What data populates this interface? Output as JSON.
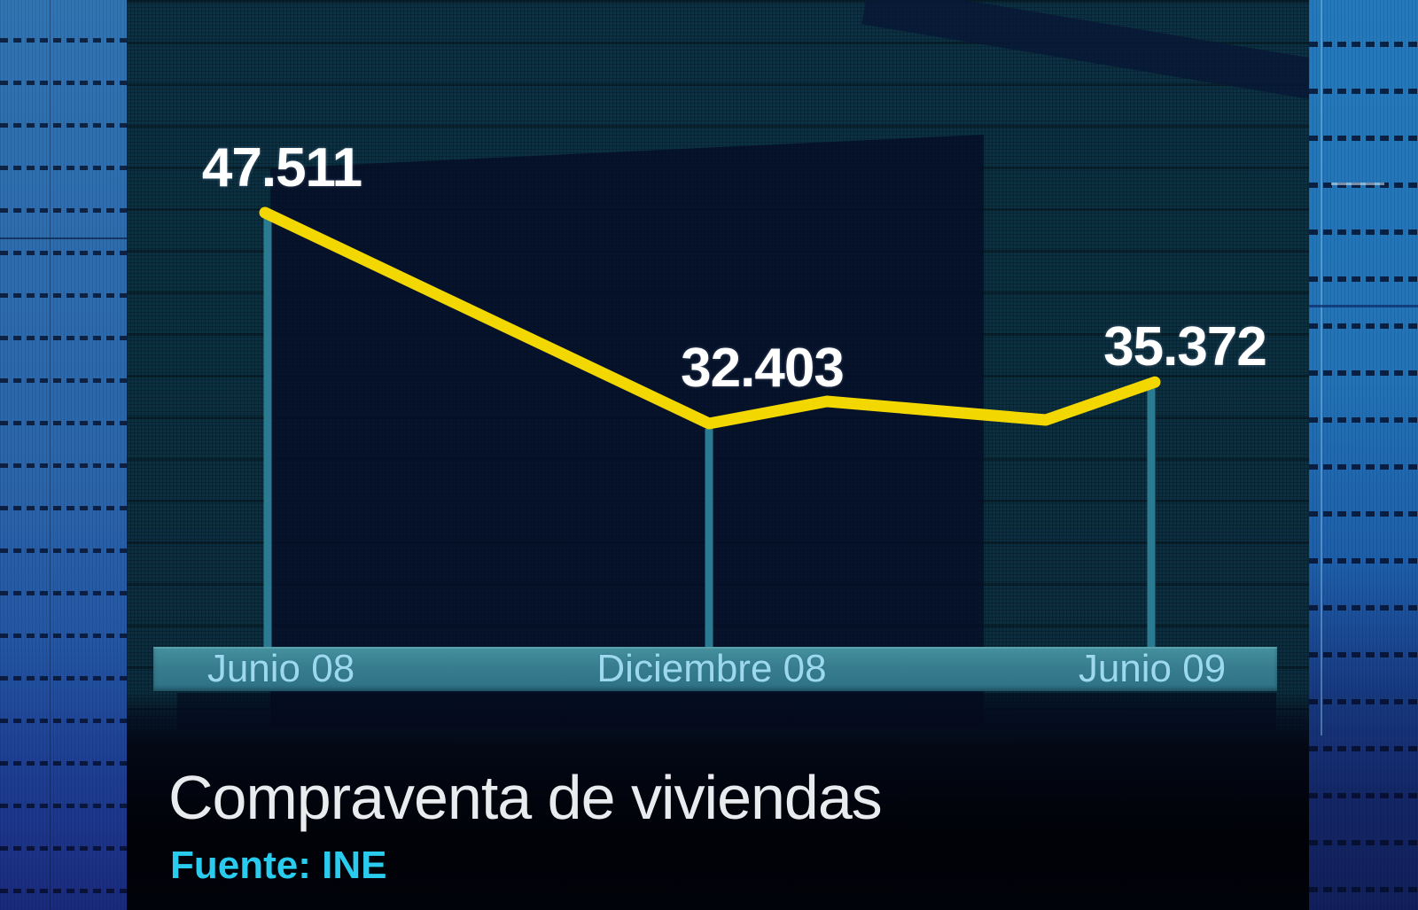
{
  "chart_data": {
    "type": "line",
    "title": "Compraventa de viviendas",
    "source": "Fuente: INE",
    "categories": [
      "Junio 08",
      "Diciembre 08",
      "Junio 09"
    ],
    "series": [
      {
        "name": "Compraventa de viviendas",
        "values": [
          47511,
          32403,
          35372
        ]
      }
    ],
    "value_labels": [
      "47.511",
      "32.403",
      "35.372"
    ],
    "line_color": "#f2d800",
    "stem_color": "#2a7b92",
    "value_label_color": "#ffffff",
    "axis_label_color": "#9dd8ec",
    "legend": "none",
    "grid": "off"
  }
}
